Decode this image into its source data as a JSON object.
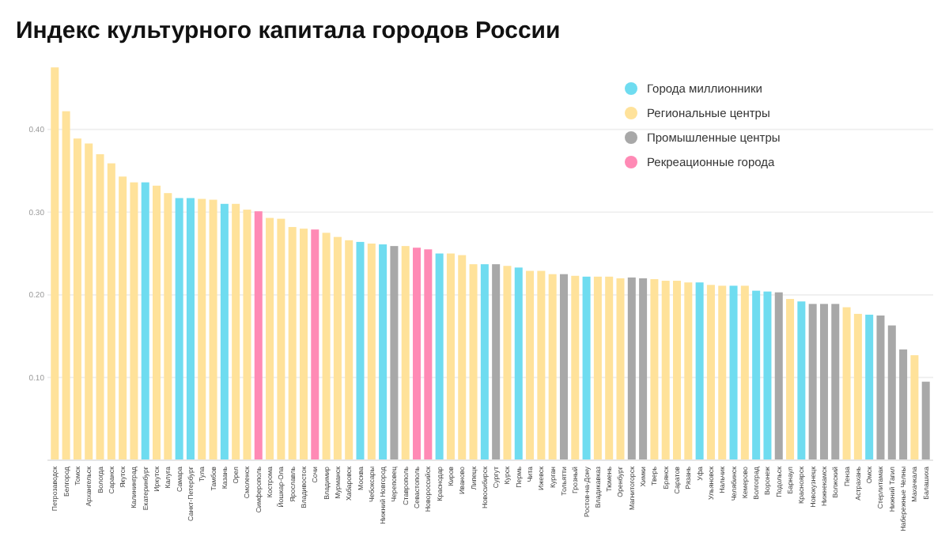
{
  "chart_data": {
    "type": "bar",
    "title": "Индекс культурного капитала городов России",
    "stacked": true,
    "legend": "top right",
    "grid": "y",
    "ylim": [
      0,
      0.48
    ],
    "yticks": [
      {
        "value": 0.1,
        "label": "0.10"
      },
      {
        "value": 0.2,
        "label": "0.20"
      },
      {
        "value": 0.3,
        "label": "0.30"
      },
      {
        "value": 0.4,
        "label": "0.40"
      }
    ],
    "categories": [
      "Петрозаводск",
      "Белгород",
      "Томск",
      "Архангельск",
      "Вологда",
      "Саранск",
      "Якутск",
      "Калининград",
      "Екатеринбург",
      "Иркутск",
      "Калуга",
      "Самара",
      "Санкт-Петербург",
      "Тула",
      "Тамбов",
      "Казань",
      "Орел",
      "Смоленск",
      "Симферополь",
      "Кострома",
      "Йошкар-Ола",
      "Ярославль",
      "Владивосток",
      "Сочи",
      "Владимир",
      "Мурманск",
      "Хабаровск",
      "Москва",
      "Чебоксары",
      "Нижний Новгород",
      "Череповец",
      "Ставрополь",
      "Севастополь",
      "Новороссийск",
      "Краснодар",
      "Киров",
      "Иваново",
      "Липецк",
      "Новосибирск",
      "Сургут",
      "Курск",
      "Пермь",
      "Чита",
      "Ижевск",
      "Курган",
      "Тольятти",
      "Грозный",
      "Ростов-на-Дону",
      "Владикавказ",
      "Тюмень",
      "Оренбург",
      "Магнитогорск",
      "Химки",
      "Тверь",
      "Брянск",
      "Саратов",
      "Рязань",
      "Уфа",
      "Ульяновск",
      "Нальчик",
      "Челябинск",
      "Кемерово",
      "Волгоград",
      "Воронеж",
      "Подольск",
      "Барнаул",
      "Красноярск",
      "Новокузнецк",
      "Нижнекамск",
      "Волжский",
      "Пенза",
      "Астрахань",
      "Омск",
      "Стерлитамак",
      "Нижний Тагил",
      "Набережные Челны",
      "Махачкала",
      "Балашиха"
    ],
    "series": [
      {
        "name": "Города миллионники",
        "color": "#6fdcf0",
        "values": [
          null,
          null,
          null,
          null,
          null,
          null,
          null,
          null,
          0.336,
          null,
          null,
          0.317,
          0.317,
          null,
          null,
          0.31,
          null,
          null,
          null,
          null,
          null,
          null,
          null,
          null,
          null,
          null,
          null,
          0.264,
          null,
          0.261,
          null,
          null,
          null,
          null,
          0.25,
          null,
          null,
          null,
          0.237,
          null,
          null,
          0.233,
          null,
          null,
          null,
          null,
          null,
          0.222,
          null,
          null,
          null,
          null,
          null,
          null,
          null,
          null,
          null,
          0.215,
          null,
          null,
          0.211,
          null,
          0.205,
          0.204,
          null,
          null,
          0.192,
          null,
          null,
          null,
          null,
          null,
          0.176,
          null,
          null,
          null,
          null,
          null
        ]
      },
      {
        "name": "Региональные  центры",
        "color": "#ffe29a",
        "values": [
          0.475,
          0.422,
          0.389,
          0.383,
          0.37,
          0.359,
          0.343,
          0.336,
          null,
          0.332,
          0.323,
          null,
          null,
          0.316,
          0.315,
          null,
          0.31,
          0.303,
          null,
          0.293,
          0.292,
          0.282,
          0.28,
          null,
          0.275,
          0.27,
          0.266,
          null,
          0.262,
          null,
          null,
          0.259,
          null,
          null,
          null,
          0.25,
          0.248,
          0.237,
          null,
          null,
          0.235,
          null,
          0.229,
          0.229,
          0.225,
          null,
          0.223,
          null,
          0.222,
          0.222,
          0.22,
          null,
          null,
          0.219,
          0.217,
          0.217,
          0.215,
          null,
          0.212,
          0.211,
          null,
          0.211,
          null,
          null,
          null,
          0.195,
          null,
          null,
          null,
          null,
          0.185,
          0.177,
          null,
          null,
          null,
          null,
          0.127,
          null
        ]
      },
      {
        "name": "Промышленные центры",
        "color": "#a8a8a8",
        "values": [
          null,
          null,
          null,
          null,
          null,
          null,
          null,
          null,
          null,
          null,
          null,
          null,
          null,
          null,
          null,
          null,
          null,
          null,
          null,
          null,
          null,
          null,
          null,
          null,
          null,
          null,
          null,
          null,
          null,
          null,
          0.259,
          null,
          null,
          null,
          null,
          null,
          null,
          null,
          null,
          0.237,
          null,
          null,
          null,
          null,
          null,
          0.225,
          null,
          null,
          null,
          null,
          null,
          0.221,
          0.22,
          null,
          null,
          null,
          null,
          null,
          null,
          null,
          null,
          null,
          null,
          null,
          0.203,
          null,
          null,
          0.189,
          0.189,
          0.189,
          null,
          null,
          null,
          0.175,
          0.163,
          0.134,
          null,
          0.095
        ]
      },
      {
        "name": "Рекреационные города",
        "color": "#ff8ab5",
        "values": [
          null,
          null,
          null,
          null,
          null,
          null,
          null,
          null,
          null,
          null,
          null,
          null,
          null,
          null,
          null,
          null,
          null,
          null,
          0.301,
          null,
          null,
          null,
          null,
          0.279,
          null,
          null,
          null,
          null,
          null,
          null,
          null,
          null,
          0.257,
          0.255,
          null,
          null,
          null,
          null,
          null,
          null,
          null,
          null,
          null,
          null,
          null,
          null,
          null,
          null,
          null,
          null,
          null,
          null,
          null,
          null,
          null,
          null,
          null,
          null,
          null,
          null,
          null,
          null,
          null,
          null,
          null,
          null,
          null,
          null,
          null,
          null,
          null,
          null,
          null,
          null,
          null,
          null,
          null,
          null
        ]
      }
    ]
  }
}
